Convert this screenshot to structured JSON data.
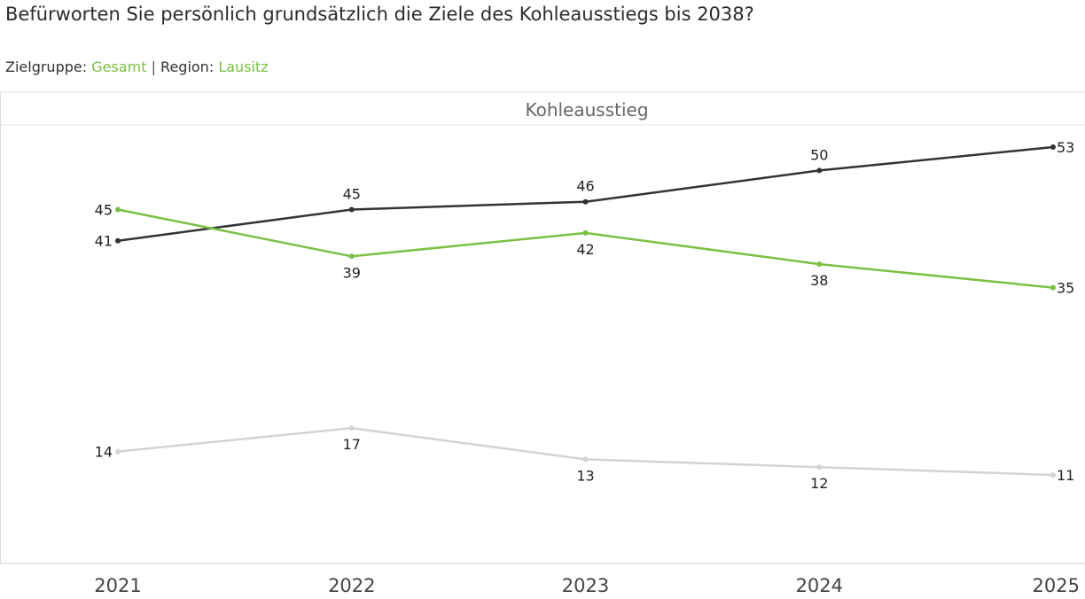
{
  "header": {
    "question": "Befürworten Sie persönlich grundsätzlich die Ziele des Kohleausstiegs bis 2038?",
    "filter_group_label": "Zielgruppe:",
    "filter_group_value": "Gesamt",
    "filter_separator": "|",
    "filter_region_label": "Region:",
    "filter_region_value": "Lausitz"
  },
  "colors": {
    "accent": "#7ac143",
    "dark_series": "#333333",
    "light_series": "#d3d3d3",
    "frame": "#dddddd"
  },
  "chart_data": {
    "type": "line",
    "title": "Kohleausstieg",
    "xlabel": "",
    "ylabel": "",
    "x": [
      "2021",
      "2022",
      "2023",
      "2024",
      "2025"
    ],
    "ylim": [
      0,
      60
    ],
    "grid": false,
    "legend": "none",
    "series": [
      {
        "color": "#333333",
        "values": [
          41,
          45,
          46,
          50,
          53
        ]
      },
      {
        "color": "#7ac143",
        "values": [
          45,
          39,
          42,
          38,
          35
        ]
      },
      {
        "color": "#d3d3d3",
        "values": [
          14,
          17,
          13,
          12,
          11
        ]
      }
    ]
  }
}
